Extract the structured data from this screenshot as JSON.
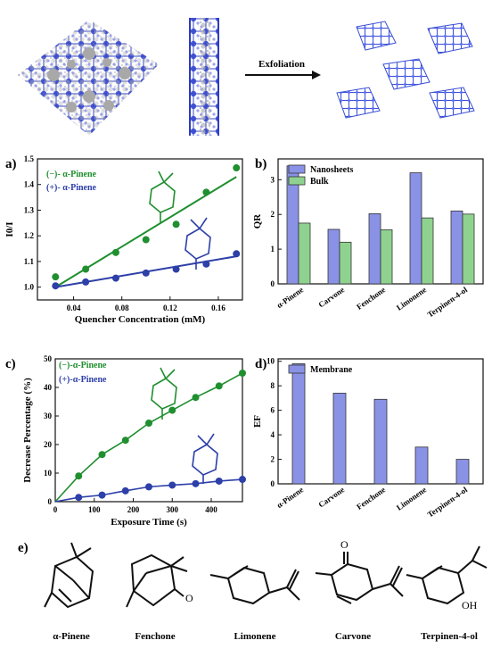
{
  "header": {
    "exfoliation_label": "Exfoliation"
  },
  "chart_data": [
    {
      "id": "a",
      "type": "scatter",
      "panel_label": "a)",
      "xlabel": "Quencher Concentration (mM)",
      "ylabel": "I0/I",
      "xlim": [
        0.01,
        0.18
      ],
      "ylim": [
        0.95,
        1.5
      ],
      "x_ticks": [
        "0.04",
        "0.08",
        "0.12",
        "0.16"
      ],
      "y_ticks": [
        "1.0",
        "1.1",
        "1.2",
        "1.3",
        "1.4",
        "1.5"
      ],
      "legend_placement": "top-left",
      "series": [
        {
          "name": "(−)- α-Pinene",
          "color": "#1f8f2f",
          "x": [
            0.025,
            0.05,
            0.075,
            0.1,
            0.125,
            0.15,
            0.175
          ],
          "y": [
            1.04,
            1.07,
            1.135,
            1.185,
            1.245,
            1.37,
            1.465
          ],
          "fit": [
            [
              0.025,
              1.0
            ],
            [
              0.175,
              1.43
            ]
          ]
        },
        {
          "name": "(+)- α-Pinene",
          "color": "#2d3fa8",
          "x": [
            0.025,
            0.05,
            0.075,
            0.1,
            0.125,
            0.15,
            0.175
          ],
          "y": [
            1.005,
            1.02,
            1.035,
            1.055,
            1.07,
            1.09,
            1.13
          ],
          "fit": [
            [
              0.025,
              1.0
            ],
            [
              0.175,
              1.12
            ]
          ]
        }
      ]
    },
    {
      "id": "b",
      "type": "bar",
      "panel_label": "b)",
      "ylabel": "QR",
      "ylim": [
        0,
        3.6
      ],
      "y_ticks": [
        "0",
        "1",
        "2",
        "3"
      ],
      "legend_placement": "top-left",
      "categories": [
        "α-Pinene",
        "Carvone",
        "Fenchone",
        "Limonene",
        "Terpinen-4-ol"
      ],
      "series": [
        {
          "name": "Nanosheets",
          "color": "#8a92e6",
          "values": [
            3.4,
            1.57,
            2.02,
            3.2,
            2.1
          ]
        },
        {
          "name": "Bulk",
          "color": "#8fd28f",
          "values": [
            1.75,
            1.2,
            1.56,
            1.9,
            2.01
          ]
        }
      ]
    },
    {
      "id": "c",
      "type": "line",
      "panel_label": "c)",
      "xlabel": "Exposure Time (s)",
      "ylabel": "Decrease Percentage (%)",
      "xlim": [
        0,
        480
      ],
      "ylim": [
        0,
        50
      ],
      "x_ticks": [
        "0",
        "100",
        "200",
        "300",
        "400"
      ],
      "y_ticks": [
        "0",
        "10",
        "20",
        "30",
        "40",
        "50"
      ],
      "legend_placement": "top-left",
      "series": [
        {
          "name": "(−)-α-Pinene",
          "color": "#1f8f2f",
          "x": [
            0,
            60,
            120,
            180,
            240,
            300,
            360,
            420,
            480
          ],
          "y": [
            0,
            9,
            16.5,
            21.5,
            27.5,
            32,
            36.5,
            40.5,
            45
          ]
        },
        {
          "name": "(+)-α-Pinene",
          "color": "#2d3fa8",
          "x": [
            0,
            60,
            120,
            180,
            240,
            300,
            360,
            420,
            480
          ],
          "y": [
            0,
            1.5,
            2.3,
            3.8,
            5.2,
            5.8,
            6.3,
            7.2,
            7.8
          ]
        }
      ]
    },
    {
      "id": "d",
      "type": "bar",
      "panel_label": "d)",
      "ylabel": "EF",
      "ylim": [
        0,
        10.2
      ],
      "y_ticks": [
        "0",
        "2",
        "4",
        "6",
        "8",
        "10"
      ],
      "legend_placement": "top-left",
      "categories": [
        "α-Pinene",
        "Carvone",
        "Fenchone",
        "Limonene",
        "Terpinen-4-ol"
      ],
      "series": [
        {
          "name": "Membrane",
          "color": "#8a92e6",
          "values": [
            9.8,
            7.4,
            6.9,
            3.0,
            2.0
          ]
        }
      ]
    }
  ],
  "molecules": {
    "panel_label": "e)",
    "items": [
      {
        "label": "α-Pinene"
      },
      {
        "label": "Fenchone",
        "atom": "O"
      },
      {
        "label": "Limonene"
      },
      {
        "label": "Carvone",
        "atom": "O"
      },
      {
        "label": "Terpinen-4-ol",
        "atom": "OH"
      }
    ]
  }
}
